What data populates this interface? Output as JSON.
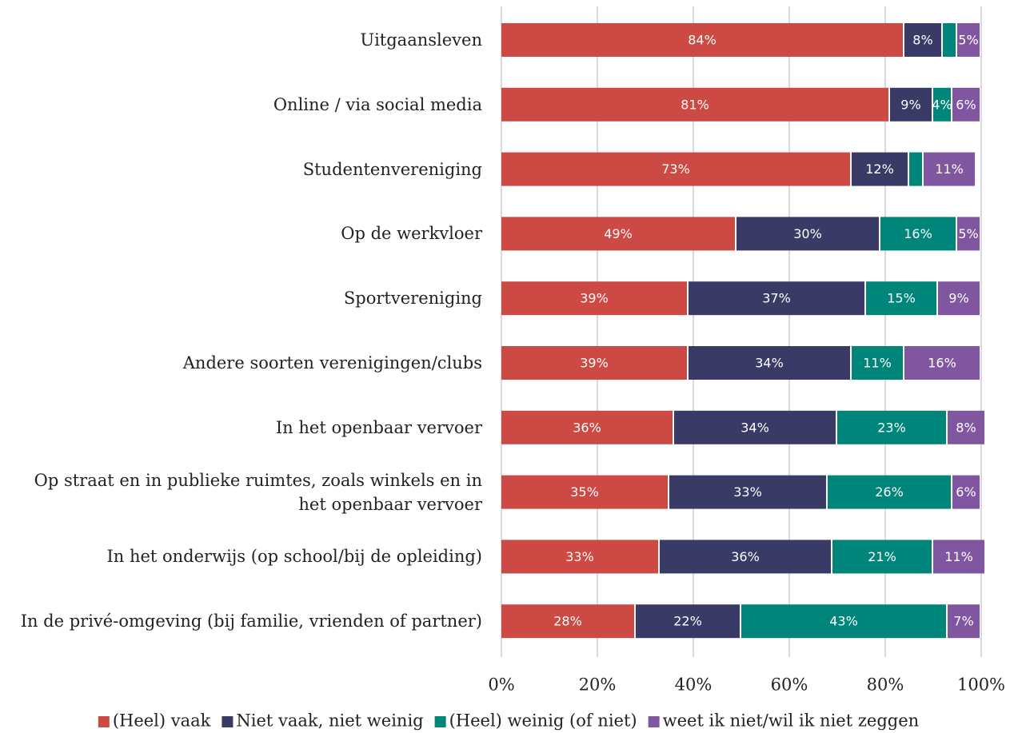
{
  "chart_data": {
    "type": "stacked-barh",
    "categories": [
      "Uitgaansleven",
      "Online / via social media",
      "Studentenvereniging",
      "Op de werkvloer",
      "Sportvereniging",
      "Andere soorten verenigingen/clubs",
      "In het openbaar vervoer",
      "Op straat en in publieke ruimtes, zoals winkels en in het openbaar vervoer",
      "In het onderwijs (op school/bij de opleiding)",
      "In de privé-omgeving (bij familie, vrienden of partner)"
    ],
    "series": [
      {
        "name": "(Heel) vaak",
        "color": "#cc4a43",
        "values": [
          84,
          81,
          73,
          49,
          39,
          39,
          36,
          35,
          33,
          28
        ],
        "value_labels": [
          "84%",
          "81%",
          "73%",
          "49%",
          "39%",
          "39%",
          "36%",
          "35%",
          "33%",
          "28%"
        ]
      },
      {
        "name": "Niet vaak, niet weinig",
        "color": "#3a3a66",
        "values": [
          8,
          9,
          12,
          30,
          37,
          34,
          34,
          33,
          36,
          22
        ],
        "value_labels": [
          "8%",
          "9%",
          "12%",
          "30%",
          "37%",
          "34%",
          "34%",
          "33%",
          "36%",
          "22%"
        ]
      },
      {
        "name": "(Heel) weinig (of niet)",
        "color": "#00857a",
        "values": [
          3,
          4,
          3,
          16,
          15,
          11,
          23,
          26,
          21,
          43
        ],
        "value_labels": [
          null,
          "4%",
          null,
          "16%",
          "15%",
          "11%",
          "23%",
          "26%",
          "21%",
          "43%"
        ]
      },
      {
        "name": "weet ik niet/wil ik niet zeggen",
        "color": "#8156a0",
        "values": [
          5,
          6,
          11,
          5,
          9,
          16,
          8,
          6,
          11,
          7
        ],
        "value_labels": [
          "5%",
          "6%",
          "11%",
          "5%",
          "9%",
          "16%",
          "8%",
          "6%",
          "11%",
          "7%"
        ]
      }
    ],
    "xlim": [
      0,
      100
    ],
    "xticks": [
      {
        "value": 0,
        "label": "0%"
      },
      {
        "value": 20,
        "label": "20%"
      },
      {
        "value": 40,
        "label": "40%"
      },
      {
        "value": 60,
        "label": "60%"
      },
      {
        "value": 80,
        "label": "80%"
      },
      {
        "value": 100,
        "label": "100%"
      }
    ],
    "grid": true,
    "legend": "bottom"
  }
}
